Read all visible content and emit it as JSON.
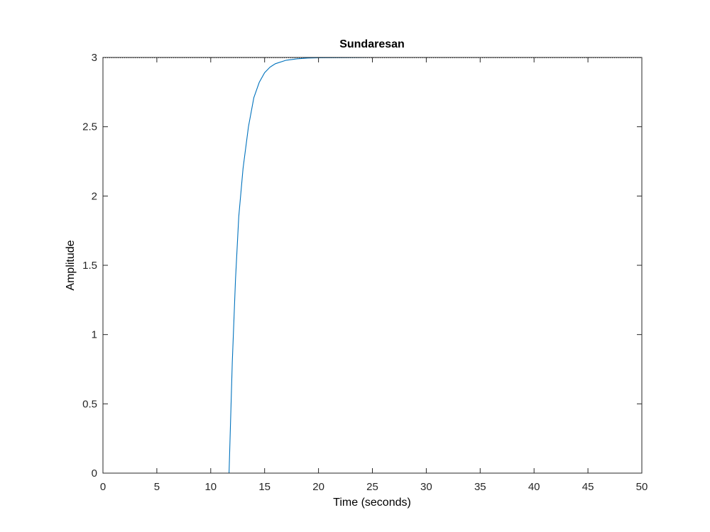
{
  "chart_data": {
    "type": "line",
    "title": "Sundaresan",
    "xlabel": "Time (seconds)",
    "ylabel": "Amplitude",
    "xlim": [
      0,
      50
    ],
    "ylim": [
      0,
      3
    ],
    "xticks": [
      0,
      5,
      10,
      15,
      20,
      25,
      30,
      35,
      40,
      45,
      50
    ],
    "xtick_labels": [
      "0",
      "5",
      "10",
      "15",
      "20",
      "25",
      "30",
      "35",
      "40",
      "45",
      "50"
    ],
    "yticks": [
      0,
      0.5,
      1,
      1.5,
      2,
      2.5,
      3
    ],
    "ytick_labels": [
      "0",
      "0.5",
      "1",
      "1.5",
      "2",
      "2.5",
      "3"
    ],
    "grid": false,
    "reference_line": {
      "y": 3,
      "style": "dotted"
    },
    "series": [
      {
        "color": "#0072bd",
        "x": [
          0,
          5,
          10,
          11.7,
          12.0,
          12.3,
          12.6,
          13.0,
          13.5,
          14.0,
          14.5,
          15.0,
          15.5,
          16.0,
          17.0,
          18.0,
          19.0,
          20.0,
          25.0,
          30.0,
          40.0,
          50.0
        ],
        "y": [
          0,
          0,
          0,
          0,
          0.8,
          1.4,
          1.85,
          2.2,
          2.5,
          2.71,
          2.82,
          2.89,
          2.93,
          2.955,
          2.98,
          2.99,
          2.996,
          2.998,
          3.0,
          3.0,
          3.0,
          3.0
        ]
      }
    ]
  }
}
